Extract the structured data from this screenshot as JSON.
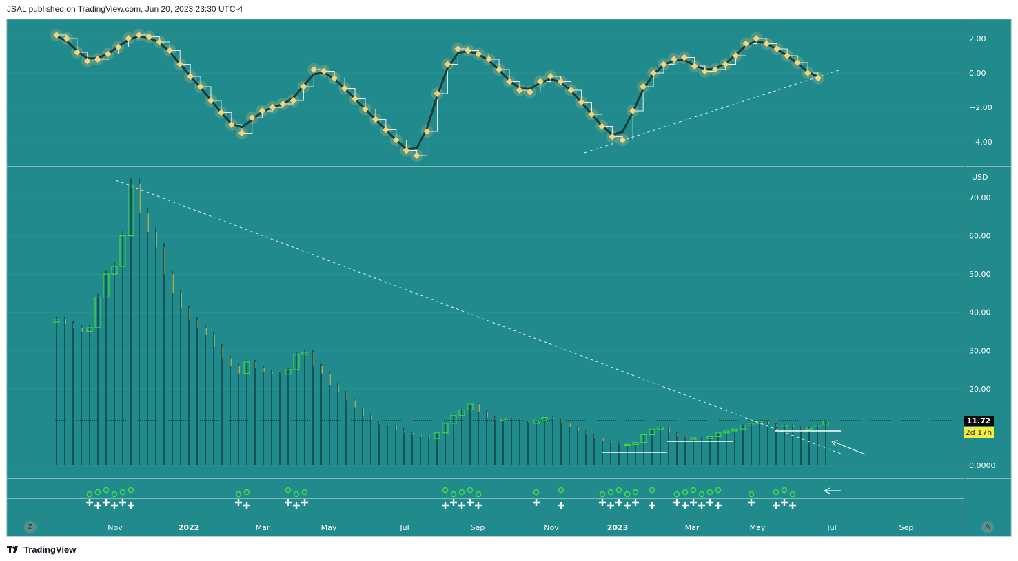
{
  "header": {
    "text": "JSAL published on TradingView.com, Jun 20, 2023 23:30 UTC-4"
  },
  "footer": {
    "brand": "TradingView"
  },
  "colors": {
    "background": "#218a8c",
    "candle_up": "#3ddc3d",
    "candle_line": "#0d1d1d",
    "oscillator_line": "#173a3a",
    "oscillator_marker": "#f2d47b",
    "markers_plus": "#ffffff",
    "markers_circle": "#43e043"
  },
  "price_axis": {
    "unit_label": "USD",
    "ticks": [
      "70.00",
      "60.00",
      "50.00",
      "40.00",
      "30.00",
      "20.00",
      "0.0000"
    ],
    "last_price": "11.72",
    "countdown": "2d 17h"
  },
  "time_axis": {
    "ticks": [
      "Nov",
      "2022",
      "Mar",
      "May",
      "Jul",
      "Sep",
      "Nov",
      "2023",
      "Mar",
      "May",
      "Jul",
      "Sep"
    ],
    "left_button": "Z",
    "right_button": "A"
  },
  "chart_data": [
    {
      "type": "line",
      "panel": "oscillator",
      "y_ticks": [
        "2.00",
        "0.00",
        "−2.00",
        "−4.00"
      ],
      "ylim": [
        -5,
        2.7
      ],
      "series": [
        {
          "values": [
            2.2,
            2.0,
            1.2,
            0.7,
            0.8,
            1.1,
            1.5,
            2.0,
            2.2,
            2.1,
            1.8,
            1.3,
            0.5,
            -0.2,
            -0.8,
            -1.6,
            -2.3,
            -3.0,
            -3.5,
            -2.6,
            -2.2,
            -2.0,
            -1.8,
            -1.6,
            -0.8,
            0.2,
            0.1,
            -0.3,
            -0.9,
            -1.5,
            -2.1,
            -2.7,
            -3.3,
            -3.9,
            -4.5,
            -4.8,
            -3.4,
            -1.2,
            0.5,
            1.4,
            1.3,
            1.1,
            0.8,
            0.2,
            -0.5,
            -1.0,
            -1.1,
            -0.5,
            -0.2,
            -0.5,
            -1.0,
            -1.7,
            -2.4,
            -3.1,
            -3.7,
            -3.9,
            -2.2,
            -0.8,
            0.0,
            0.5,
            0.8,
            0.9,
            0.4,
            0.1,
            0.2,
            0.5,
            1.0,
            1.7,
            2.0,
            1.7,
            1.4,
            1.0,
            0.6,
            0.0,
            -0.3
          ]
        }
      ]
    },
    {
      "type": "bar",
      "panel": "price",
      "ylabel": "USD",
      "ylim": [
        0,
        75
      ],
      "x_range": [
        "2021-09-06",
        "2023-06-20"
      ],
      "closes": [
        38.2,
        37.0,
        36.0,
        35.0,
        36.0,
        44.0,
        50.0,
        52.0,
        60.0,
        73.5,
        66.0,
        61.0,
        57.0,
        50.0,
        45.0,
        41.0,
        38.0,
        36.0,
        34.0,
        31.0,
        28.0,
        26.0,
        24.0,
        27.0,
        25.5,
        24.5,
        24.0,
        23.8,
        25.0,
        29.0,
        29.5,
        26.0,
        24.0,
        21.0,
        19.0,
        17.0,
        15.0,
        13.0,
        11.5,
        10.7,
        10.5,
        9.5,
        8.5,
        8.0,
        7.5,
        7.0,
        8.5,
        11.0,
        13.0,
        14.5,
        16.0,
        14.0,
        12.5,
        12.0,
        12.2,
        12.0,
        11.5,
        11.0,
        11.8,
        12.5,
        12.0,
        11.0,
        10.0,
        9.0,
        8.0,
        7.0,
        6.5,
        6.0,
        5.5,
        5.5,
        6.0,
        8.0,
        9.5,
        10.0,
        8.5,
        7.5,
        7.0,
        7.2,
        7.0,
        7.5,
        8.5,
        9.0,
        9.5,
        10.5,
        11.0,
        11.5,
        10.8,
        10.0,
        10.5,
        10.0,
        9.5,
        10.0,
        10.5,
        11.72
      ],
      "gains_marked": [
        4,
        5,
        6,
        7,
        8,
        9,
        22,
        23,
        28,
        29,
        30,
        47,
        48,
        49,
        50,
        51,
        58,
        61,
        66,
        67,
        68,
        69,
        70,
        72,
        75,
        76,
        77,
        78,
        79,
        80,
        84,
        87,
        88,
        89
      ]
    }
  ]
}
